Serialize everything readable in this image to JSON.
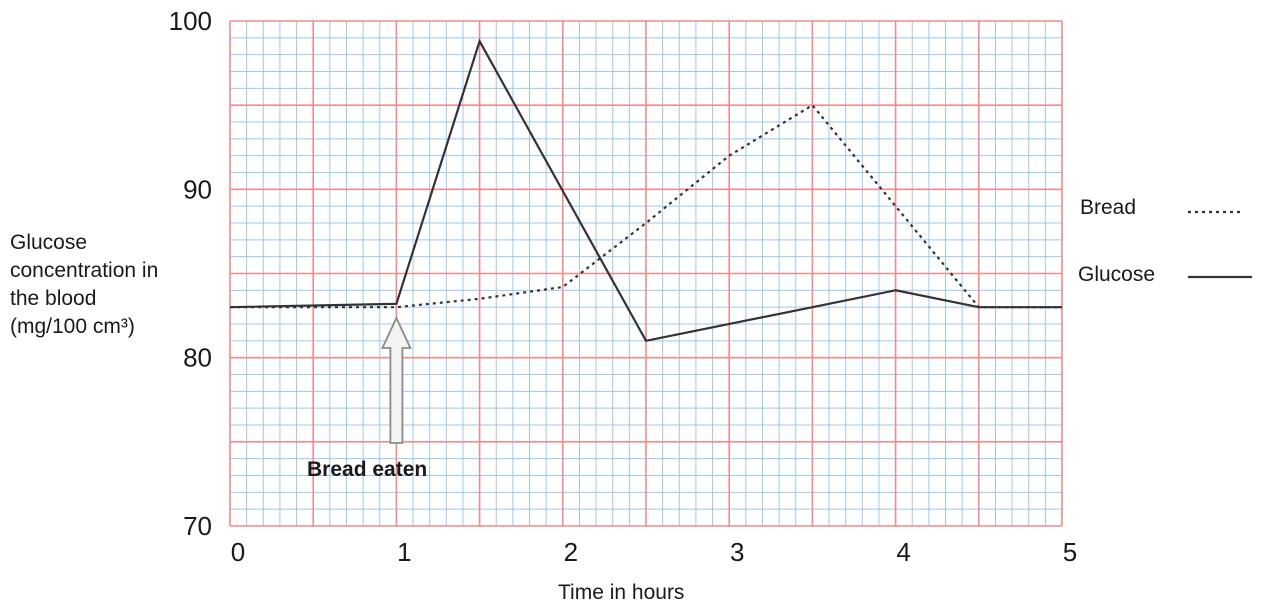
{
  "chart_data": {
    "type": "line",
    "xlabel": "Time in hours",
    "ylabel_lines": [
      "Glucose",
      "concentration in",
      "the blood",
      "(mg/100 cm³)"
    ],
    "xlim": [
      0,
      5
    ],
    "ylim": [
      70,
      100
    ],
    "x_ticks": [
      "0",
      "1",
      "2",
      "3",
      "4",
      "5"
    ],
    "y_ticks": [
      "70",
      "80",
      "90",
      "100"
    ],
    "grid": true,
    "legend_position": "right",
    "series": [
      {
        "name": "Bread",
        "style": "dotted",
        "x": [
          0,
          1,
          1.5,
          2,
          2.5,
          3,
          3.5,
          4,
          4.5,
          5
        ],
        "y": [
          83,
          83,
          83.5,
          84.2,
          88,
          92,
          95,
          89,
          83,
          83
        ]
      },
      {
        "name": "Glucose",
        "style": "solid",
        "x": [
          0,
          1,
          1.5,
          2.5,
          3.5,
          4,
          4.5,
          5
        ],
        "y": [
          83,
          83.2,
          98.8,
          81,
          83,
          84,
          83,
          83
        ]
      }
    ],
    "annotations": [
      {
        "text": "Bread eaten",
        "x": 1
      }
    ],
    "colors": {
      "major_grid": "#f28b8b",
      "minor_grid": "#9cc8ee",
      "line": "#333333",
      "arrow_fill": "#f3f3f3",
      "arrow_stroke": "#8a8a8a"
    }
  }
}
